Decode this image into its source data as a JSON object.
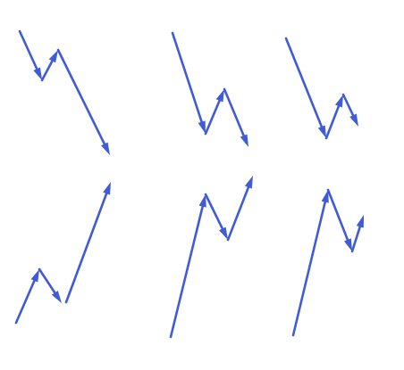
{
  "colors": {
    "background": "#ffffff",
    "arrow": "#3f5bd6"
  },
  "figure": {
    "description_text": "",
    "panels": [
      {
        "id": "panel-1",
        "direction": "down",
        "legs": 3
      },
      {
        "id": "panel-2",
        "direction": "down",
        "legs": 3
      },
      {
        "id": "panel-3",
        "direction": "down",
        "legs": 3
      },
      {
        "id": "panel-4",
        "direction": "up",
        "legs": 3
      },
      {
        "id": "panel-5",
        "direction": "up",
        "legs": 3
      },
      {
        "id": "panel-6",
        "direction": "up",
        "legs": 3
      }
    ]
  }
}
